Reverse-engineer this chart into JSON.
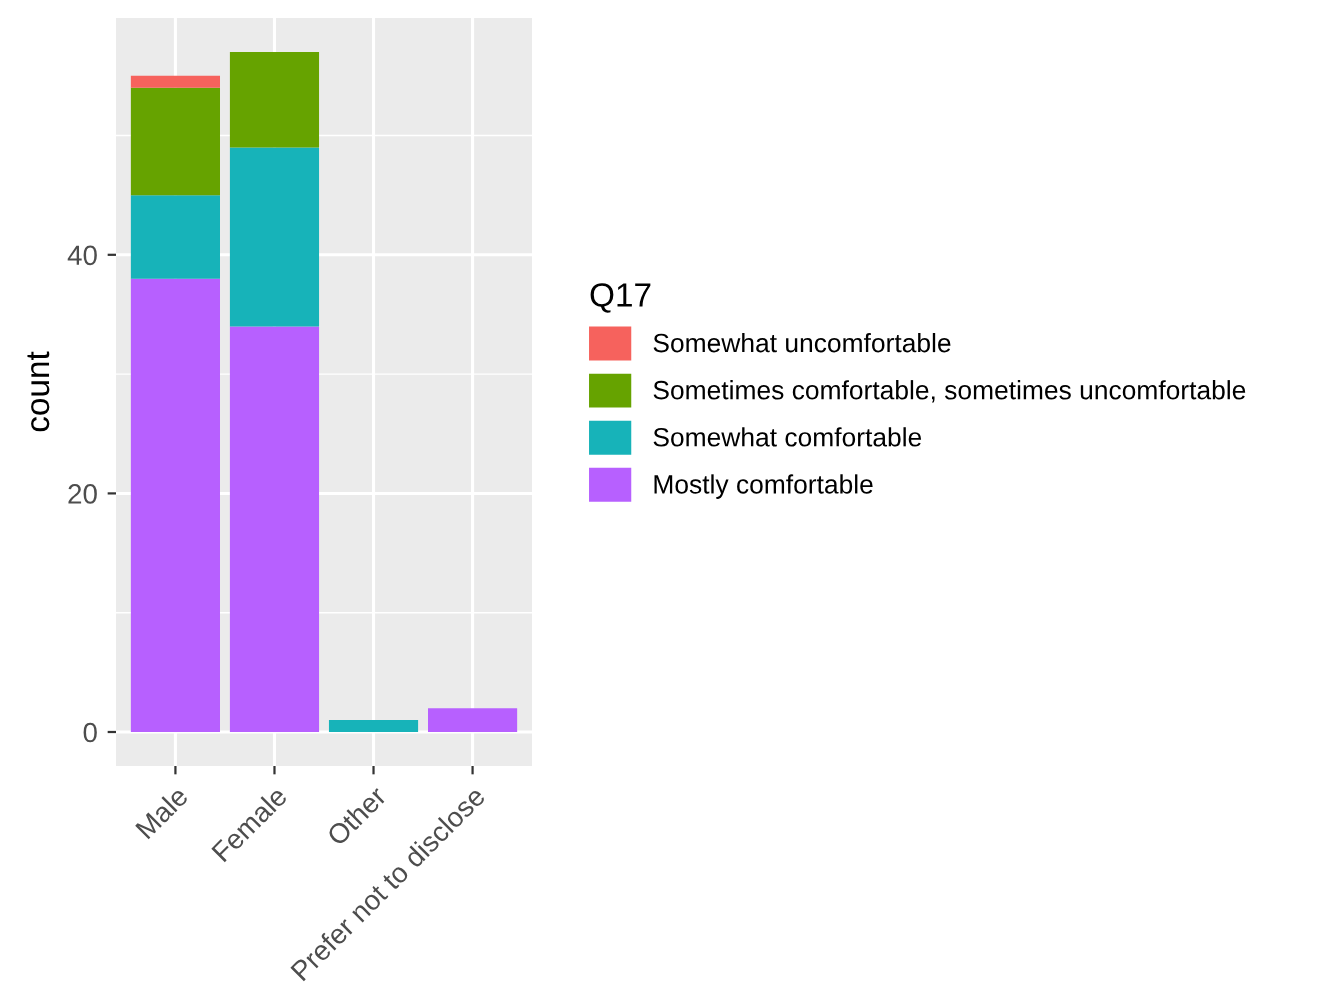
{
  "chart_data": {
    "type": "bar",
    "stacked": true,
    "ylabel": "count",
    "legend_title": "Q17",
    "legend": "right",
    "grid": true,
    "categories": [
      "Male",
      "Female",
      "Other",
      "Prefer not to disclose"
    ],
    "series": [
      {
        "name": "Mostly comfortable",
        "color": "#b760ff",
        "values": [
          38,
          34,
          0,
          2
        ]
      },
      {
        "name": "Somewhat comfortable",
        "color": "#17b3b9",
        "values": [
          7,
          15,
          1,
          0
        ]
      },
      {
        "name": "Sometimes comfortable, sometimes uncomfortable",
        "color": "#66a300",
        "values": [
          9,
          8,
          0,
          0
        ]
      },
      {
        "name": "Somewhat uncomfortable",
        "color": "#f6625d",
        "values": [
          1,
          0,
          0,
          0
        ]
      }
    ],
    "ylim": [
      -2.85,
      59.85
    ],
    "yticks": [
      0,
      20,
      40
    ]
  }
}
